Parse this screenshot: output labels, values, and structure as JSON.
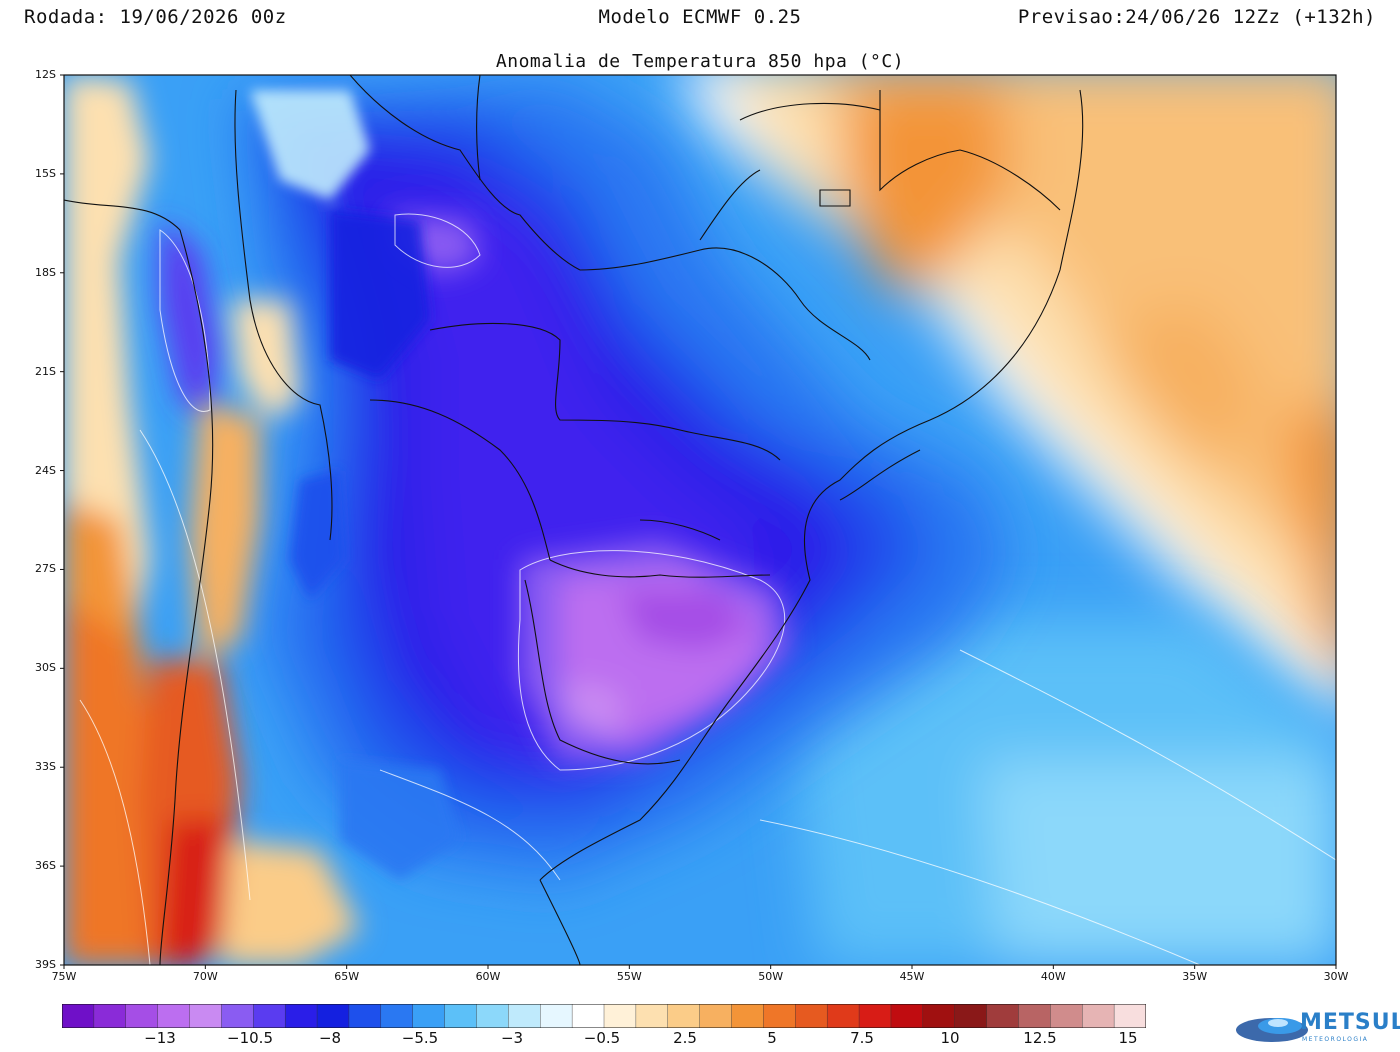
{
  "header": {
    "left": "Rodada: 19/06/2026 00z",
    "center": "Modelo ECMWF 0.25",
    "right": "Previsao:24/06/26 12Zz (+132h)"
  },
  "map": {
    "title": "Anomalia de Temperatura 850 hpa (°C)",
    "lat_labels": [
      "12S",
      "15S",
      "18S",
      "21S",
      "24S",
      "27S",
      "30S",
      "33S",
      "36S",
      "39S"
    ],
    "lon_labels": [
      "75W",
      "70W",
      "65W",
      "60W",
      "55W",
      "50W",
      "45W",
      "40W",
      "35W",
      "30W"
    ]
  },
  "legend": {
    "labels": [
      "−13",
      "−10.5",
      "−8",
      "−5.5",
      "−3",
      "−0.5",
      "2.5",
      "5",
      "7.5",
      "10",
      "12.5",
      "15"
    ],
    "colors": [
      "#6f10c8",
      "#8a2bd8",
      "#a54ee6",
      "#bc6ef0",
      "#c98af2",
      "#8a5cf2",
      "#5a3cf0",
      "#2a1ee8",
      "#1420e0",
      "#1e50ec",
      "#2a78f2",
      "#3aa0f6",
      "#5cc0f8",
      "#8cd8fa",
      "#bfeafc",
      "#e6f7ff",
      "#ffffff",
      "#fff1d8",
      "#fde0b0",
      "#fbcc88",
      "#f7b060",
      "#f39438",
      "#ef7628",
      "#e65a20",
      "#e03a1a",
      "#d81c16",
      "#c00c10",
      "#a01010",
      "#8a1818",
      "#a03c3c",
      "#b86464",
      "#d08c8c",
      "#e6b4b4",
      "#f8dede"
    ]
  },
  "logo": {
    "name": "METSUL",
    "sub": "METEOROLOGIA"
  }
}
